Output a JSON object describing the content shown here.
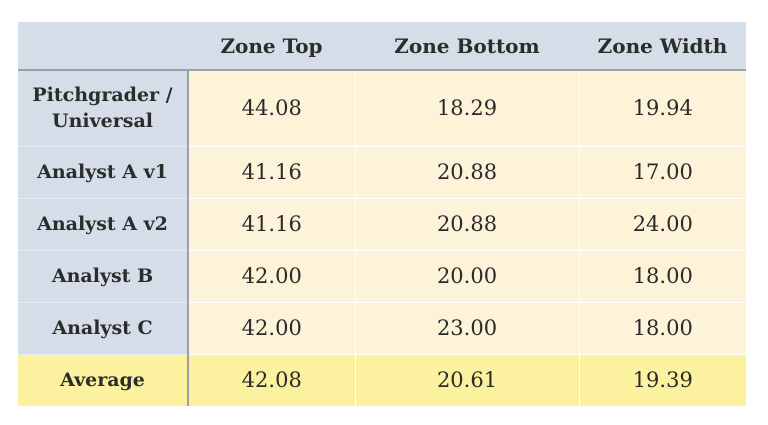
{
  "chart_data": {
    "type": "table",
    "columns": [
      "",
      "Zone Top",
      "Zone Bottom",
      "Zone Width"
    ],
    "rows": [
      {
        "label": "Pitchgrader / Universal",
        "values": [
          "44.08",
          "18.29",
          "19.94"
        ]
      },
      {
        "label": "Analyst A v1",
        "values": [
          "41.16",
          "20.88",
          "17.00"
        ]
      },
      {
        "label": "Analyst A v2",
        "values": [
          "41.16",
          "20.88",
          "24.00"
        ]
      },
      {
        "label": "Analyst B",
        "values": [
          "42.00",
          "20.00",
          "18.00"
        ]
      },
      {
        "label": "Analyst C",
        "values": [
          "42.00",
          "23.00",
          "18.00"
        ]
      },
      {
        "label": "Average",
        "values": [
          "42.08",
          "20.61",
          "19.39"
        ]
      }
    ]
  },
  "colors": {
    "header_bg": "#d5dde8",
    "cell_bg": "#fdf3d9",
    "average_bg": "#fbf19f",
    "divider": "#9ba0a6"
  }
}
